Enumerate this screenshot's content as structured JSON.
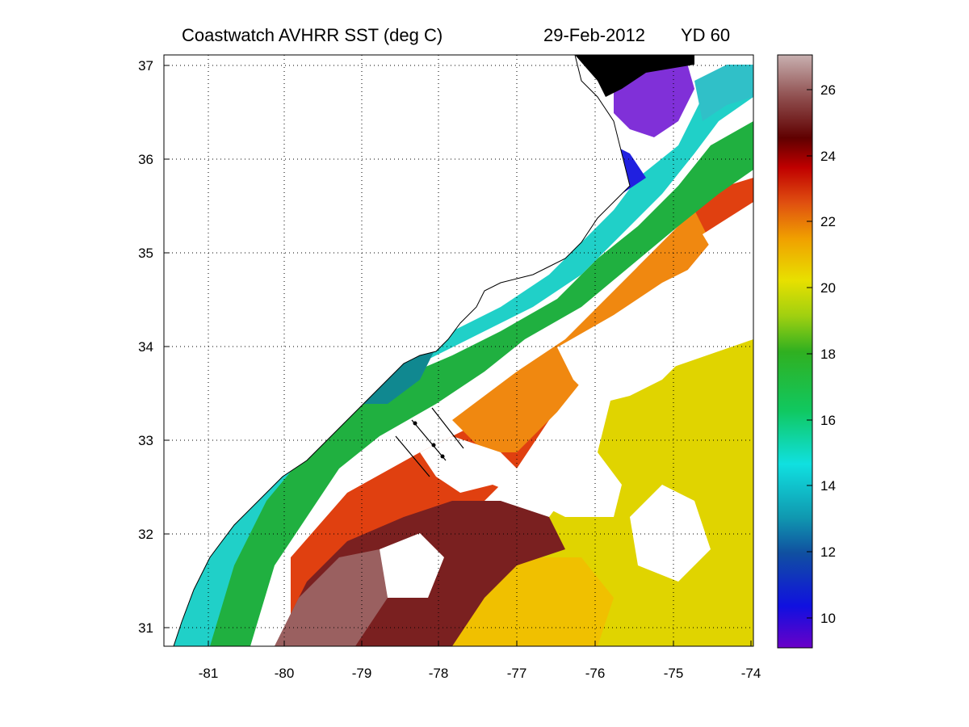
{
  "header": {
    "title": "Coastwatch   AVHRR   SST  (deg C)",
    "date": "29-Feb-2012",
    "yearday": "YD 60"
  },
  "map": {
    "lon_ticks": [
      "-81",
      "-80",
      "-79",
      "-78",
      "-77",
      "-76",
      "-75",
      "-74"
    ],
    "lat_ticks": [
      "37",
      "36",
      "35",
      "34",
      "33",
      "32",
      "31"
    ],
    "lon_range": [
      -81.5,
      -74
    ],
    "lat_range": [
      30.8,
      37.1
    ],
    "grid": true,
    "sst_field": {
      "shelf_near_shore_degC": 14,
      "shelf_mid_degC": 17,
      "gulf_stream_front_degC": 22,
      "gulf_stream_core_degC": 25,
      "sargasso_degC": 20.5,
      "pamlico_sound_degC": 9.5,
      "chesapeake_mouth_degC": 9
    }
  },
  "colorbar": {
    "ticks": [
      "26",
      "24",
      "22",
      "20",
      "18",
      "16",
      "14",
      "12",
      "10"
    ],
    "range": [
      9,
      27
    ],
    "colors": [
      "#6a00c8",
      "#1010e0",
      "#1050a0",
      "#10a0b0",
      "#10d8d0",
      "#10c860",
      "#30b020",
      "#a0d010",
      "#e0e000",
      "#f0a000",
      "#e05010",
      "#c00000",
      "#600000",
      "#905050",
      "#c0a0a0"
    ]
  }
}
